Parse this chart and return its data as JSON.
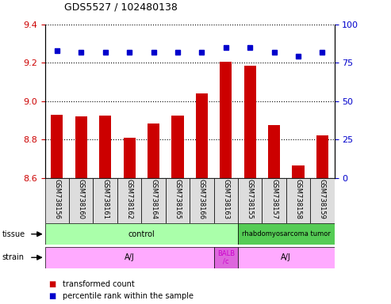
{
  "title": "GDS5527 / 102480138",
  "samples": [
    "GSM738156",
    "GSM738160",
    "GSM738161",
    "GSM738162",
    "GSM738164",
    "GSM738165",
    "GSM738166",
    "GSM738163",
    "GSM738155",
    "GSM738157",
    "GSM738158",
    "GSM738159"
  ],
  "bar_values": [
    8.93,
    8.92,
    8.925,
    8.81,
    8.885,
    8.925,
    9.04,
    9.205,
    9.185,
    8.875,
    8.665,
    8.82
  ],
  "percentile_values": [
    83,
    82,
    82,
    82,
    82,
    82,
    82,
    85,
    85,
    82,
    79,
    82
  ],
  "ylim_left": [
    8.6,
    9.4
  ],
  "ylim_right": [
    0,
    100
  ],
  "bar_color": "#cc0000",
  "dot_color": "#0000cc",
  "grid_yticks": [
    8.6,
    8.8,
    9.0,
    9.2,
    9.4
  ],
  "right_ticks": [
    0,
    25,
    50,
    75,
    100
  ],
  "tissue_data": [
    {
      "label": "control",
      "start": 0,
      "end": 8,
      "color": "#aaffaa",
      "text_color": "#000000",
      "fontsize": 7
    },
    {
      "label": "rhabdomyosarcoma tumor",
      "start": 8,
      "end": 12,
      "color": "#55cc55",
      "text_color": "#000000",
      "fontsize": 6
    }
  ],
  "strain_data": [
    {
      "label": "A/J",
      "start": 0,
      "end": 7,
      "color": "#ffaaff",
      "text_color": "#000000",
      "fontsize": 7
    },
    {
      "label": "BALB\n/c",
      "start": 7,
      "end": 8,
      "color": "#dd66dd",
      "text_color": "#cc00cc",
      "fontsize": 6
    },
    {
      "label": "A/J",
      "start": 8,
      "end": 12,
      "color": "#ffaaff",
      "text_color": "#000000",
      "fontsize": 7
    }
  ],
  "label_tissue": "tissue",
  "label_strain": "strain",
  "label_bar": "transformed count",
  "label_dot": "percentile rank within the sample",
  "left_tick_color": "#cc0000",
  "right_tick_color": "#0000cc",
  "background_color": "#ffffff",
  "border_color": "#000000"
}
